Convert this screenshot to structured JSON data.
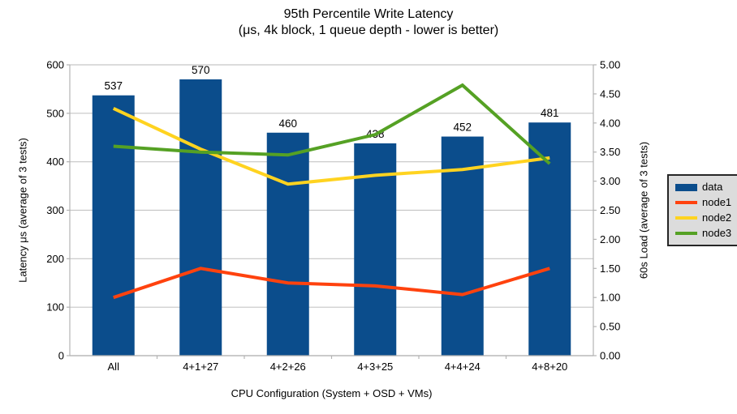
{
  "title": {
    "line1": "95th Percentile Write Latency",
    "line2": "(μs, 4k block, 1 queue depth - lower is better)"
  },
  "axes": {
    "left": {
      "title": "Latency μs (average of 3 tests)"
    },
    "right": {
      "title": "60s Load (average of 3 tests)"
    },
    "x": {
      "title": "CPU Configuration (System + OSD + VMs)"
    }
  },
  "colors": {
    "gridline": "#c6c6c6",
    "axis_line": "#b3b3b3",
    "text": "#000000",
    "legend_background": "#dcdcdc",
    "legend_border": "#262626"
  },
  "chart_data": {
    "type": "bar+line combo",
    "categories": [
      "All",
      "4+1+27",
      "4+2+26",
      "4+3+25",
      "4+4+24",
      "4+8+20"
    ],
    "left_axis": {
      "label": "Latency μs (average of 3 tests)",
      "min": 0,
      "max": 600,
      "step": 100
    },
    "right_axis": {
      "label": "60s Load (average of 3 tests)",
      "min": 0,
      "max": 5,
      "step": 0.5,
      "decimals": 2
    },
    "grid": "horizontal-major-left-axis",
    "legend_position": "right",
    "series": [
      {
        "name": "data",
        "type": "bar",
        "axis": "left",
        "color": "#0b4d8c",
        "values": [
          537,
          570,
          460,
          438,
          452,
          481
        ],
        "data_labels": [
          "537",
          "570",
          "460",
          "438",
          "452",
          "481"
        ]
      },
      {
        "name": "node1",
        "type": "line",
        "axis": "right",
        "color": "#ff420e",
        "values": [
          1.0,
          1.5,
          1.25,
          1.2,
          1.05,
          1.5
        ]
      },
      {
        "name": "node2",
        "type": "line",
        "axis": "right",
        "color": "#ffd320",
        "values": [
          4.25,
          3.55,
          2.95,
          3.1,
          3.2,
          3.4
        ]
      },
      {
        "name": "node3",
        "type": "line",
        "axis": "right",
        "color": "#55a124",
        "values": [
          3.6,
          3.5,
          3.45,
          3.8,
          4.65,
          3.3
        ]
      }
    ]
  }
}
